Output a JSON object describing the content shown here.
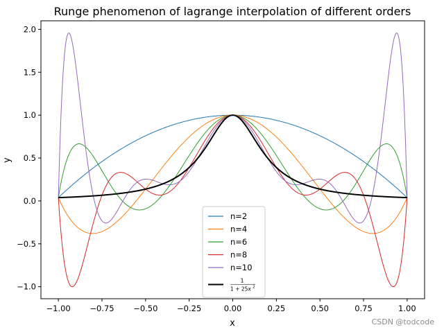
{
  "chart_data": {
    "type": "line",
    "title": "Runge phenomenon of lagrange interpolation of different orders",
    "xlabel": "x",
    "ylabel": "y",
    "xlim": [
      -1.1,
      1.1
    ],
    "ylim": [
      -1.14,
      2.1
    ],
    "x_ticks": [
      "−1.00",
      "−0.75",
      "−0.50",
      "−0.25",
      "0.00",
      "0.25",
      "0.50",
      "0.75",
      "1.00"
    ],
    "x_tick_values": [
      -1.0,
      -0.75,
      -0.5,
      -0.25,
      0.0,
      0.25,
      0.5,
      0.75,
      1.0
    ],
    "y_ticks": [
      "−1.0",
      "−0.5",
      "0.0",
      "0.5",
      "1.0",
      "1.5",
      "2.0"
    ],
    "y_tick_values": [
      -1.0,
      -0.5,
      0.0,
      0.5,
      1.0,
      1.5,
      2.0
    ],
    "grid": false,
    "legend_position": "lower center",
    "function": "1/(1+25x^2)",
    "domain": [
      -1,
      1
    ],
    "series": [
      {
        "name": "n=2",
        "order": 2,
        "color": "#1f77b4"
      },
      {
        "name": "n=4",
        "order": 4,
        "color": "#ff7f0e"
      },
      {
        "name": "n=6",
        "order": 6,
        "color": "#2ca02c"
      },
      {
        "name": "n=8",
        "order": 8,
        "color": "#d62728"
      },
      {
        "name": "n=10",
        "order": 10,
        "color": "#9467bd"
      }
    ],
    "reference": {
      "legend_num": "1",
      "legend_den": "1 + 25x",
      "legend_exp": "2",
      "color": "#000000"
    }
  },
  "watermark": "CSDN @todcode"
}
